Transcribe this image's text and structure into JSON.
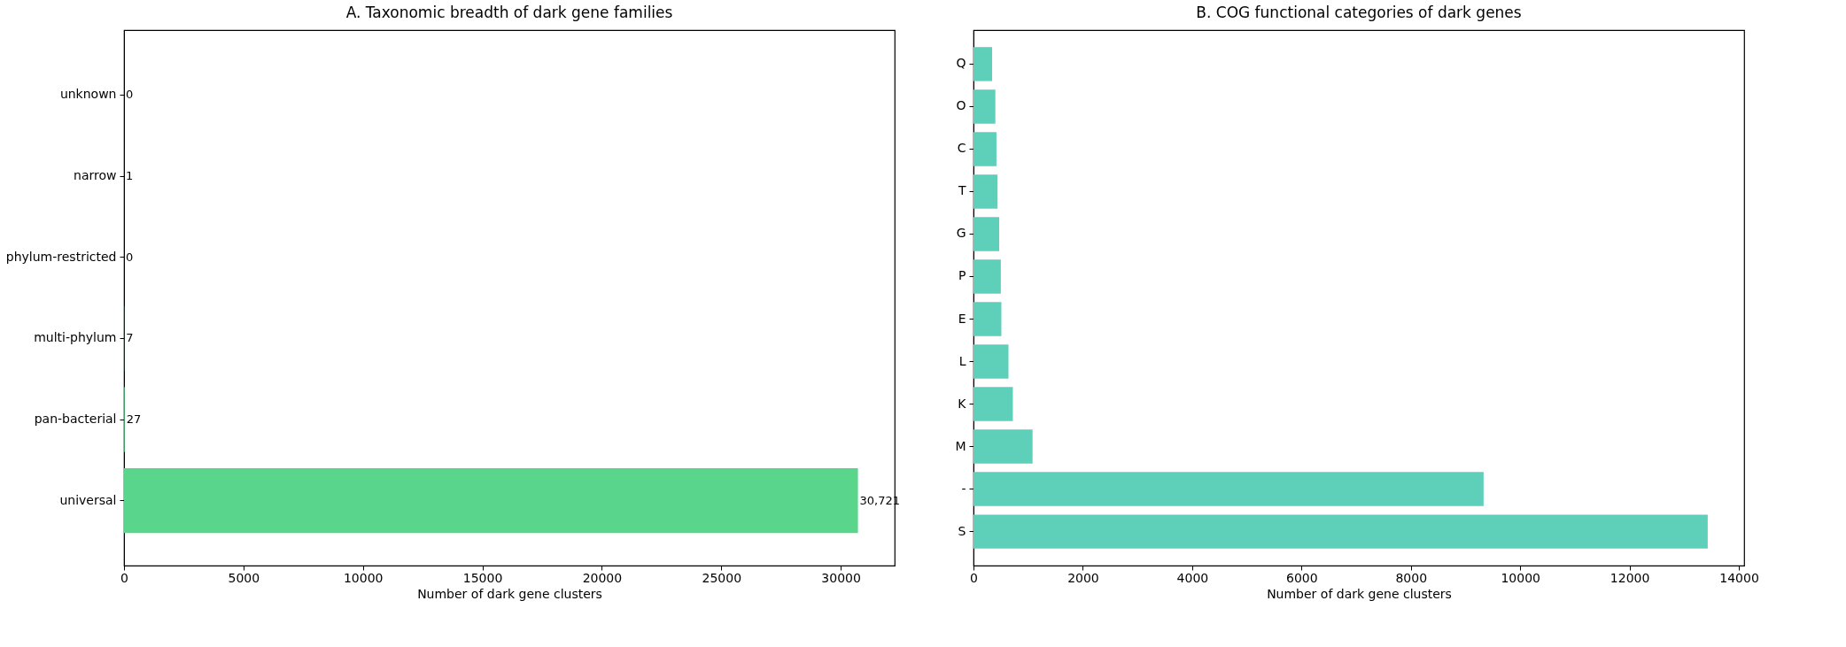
{
  "chart_data": [
    {
      "type": "bar",
      "orientation": "horizontal",
      "title": "A. Taxonomic breadth of dark gene families",
      "xlabel": "Number of dark gene clusters",
      "categories": [
        "unknown",
        "narrow",
        "phylum-restricted",
        "multi-phylum",
        "pan-bacterial",
        "universal"
      ],
      "values": [
        0,
        1,
        0,
        7,
        27,
        30721
      ],
      "value_labels": [
        "0",
        "1",
        "0",
        "7",
        "27",
        "30,721"
      ],
      "color": "#59d68c",
      "xlim": [
        0,
        32257
      ],
      "xticks": [
        0,
        5000,
        10000,
        15000,
        20000,
        25000,
        30000
      ],
      "grid": false
    },
    {
      "type": "bar",
      "orientation": "horizontal",
      "title": "B. COG functional categories of dark genes",
      "xlabel": "Number of dark gene clusters",
      "categories": [
        "Q",
        "O",
        "C",
        "T",
        "G",
        "P",
        "E",
        "L",
        "K",
        "M",
        "-",
        "S"
      ],
      "values": [
        340,
        400,
        420,
        440,
        470,
        500,
        510,
        640,
        720,
        1080,
        9330,
        13430
      ],
      "color": "#5ecfb9",
      "xlim": [
        0,
        14096
      ],
      "xticks": [
        0,
        2000,
        4000,
        6000,
        8000,
        10000,
        12000,
        14000
      ],
      "grid": false
    }
  ]
}
